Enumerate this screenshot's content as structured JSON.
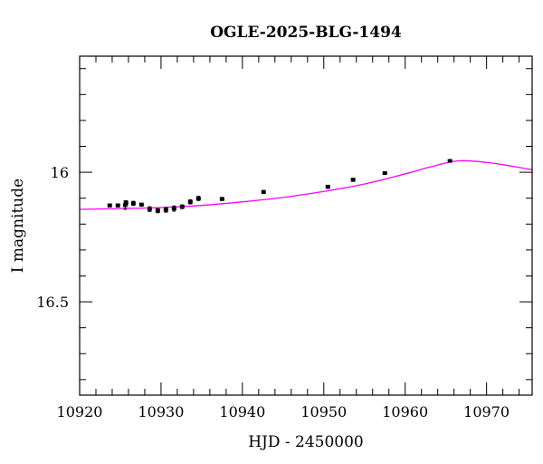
{
  "chart_data": {
    "type": "scatter",
    "title": "OGLE-2025-BLG-1494",
    "xlabel": "HJD - 2450000",
    "ylabel": "I magnitude",
    "xlim": [
      10920,
      10975.6
    ],
    "ylim": [
      16.86,
      15.552
    ],
    "y_inverted": true,
    "grid": false,
    "x_ticks": [
      "10920",
      "10930",
      "10940",
      "10950",
      "10960",
      "10970"
    ],
    "y_ticks": [
      "16",
      "16.5"
    ],
    "colors": {
      "points": "#000000",
      "model": "#ff00ff"
    },
    "series": [
      {
        "type": "scatter-errorbar",
        "points": [
          {
            "x": 10923.7,
            "y": 16.128,
            "err": 0.006
          },
          {
            "x": 10924.7,
            "y": 16.128,
            "err": 0.006
          },
          {
            "x": 10925.6,
            "y": 16.127,
            "err": 0.016
          },
          {
            "x": 10925.7,
            "y": 16.118,
            "err": 0.008
          },
          {
            "x": 10926.6,
            "y": 16.12,
            "err": 0.008
          },
          {
            "x": 10927.6,
            "y": 16.125,
            "err": 0.006
          },
          {
            "x": 10928.6,
            "y": 16.142,
            "err": 0.009
          },
          {
            "x": 10929.6,
            "y": 16.148,
            "err": 0.008
          },
          {
            "x": 10930.6,
            "y": 16.145,
            "err": 0.009
          },
          {
            "x": 10931.6,
            "y": 16.14,
            "err": 0.01
          },
          {
            "x": 10932.6,
            "y": 16.133,
            "err": 0.007
          },
          {
            "x": 10933.6,
            "y": 16.114,
            "err": 0.008
          },
          {
            "x": 10934.6,
            "y": 16.101,
            "err": 0.008
          },
          {
            "x": 10937.5,
            "y": 16.103,
            "err": 0.006
          },
          {
            "x": 10942.6,
            "y": 16.076,
            "err": 0.006
          },
          {
            "x": 10950.5,
            "y": 16.056,
            "err": 0.006
          },
          {
            "x": 10953.6,
            "y": 16.029,
            "err": 0.006
          },
          {
            "x": 10957.5,
            "y": 16.003,
            "err": 0.005
          },
          {
            "x": 10965.5,
            "y": 15.956,
            "err": 0.005
          }
        ]
      },
      {
        "type": "line",
        "x": [
          10920,
          10925,
          10930,
          10935,
          10940,
          10945,
          10950,
          10955,
          10960,
          10963,
          10966.5,
          10970,
          10973,
          10975.6
        ],
        "y": [
          16.143,
          16.14,
          16.136,
          16.128,
          16.114,
          16.097,
          16.074,
          16.045,
          16.006,
          15.98,
          15.956,
          15.962,
          15.976,
          15.99
        ]
      }
    ]
  }
}
